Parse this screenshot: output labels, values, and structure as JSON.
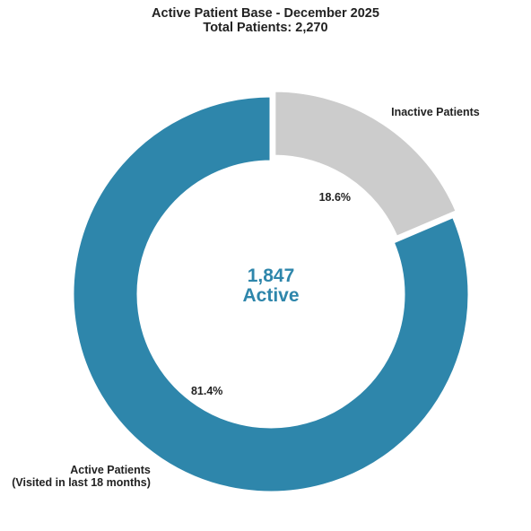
{
  "chart_data": {
    "type": "donut",
    "title": "Active Patient Base - December 2025",
    "subtitle": "Total Patients: 2,270",
    "categories": [
      "Active Patients\n(Visited in last 18 months)",
      "Inactive Patients"
    ],
    "values": [
      81.4,
      18.6
    ],
    "value_labels": [
      "81.4%",
      "18.6%"
    ],
    "colors": [
      "#2e86ab",
      "#cccccc"
    ],
    "center_label": "1,847",
    "center_sublabel": "Active"
  }
}
